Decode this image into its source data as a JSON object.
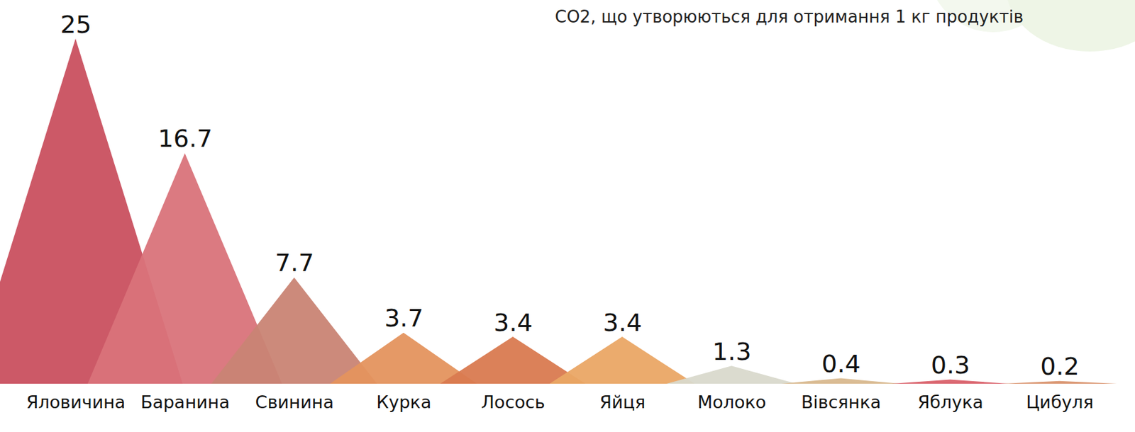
{
  "chart_data": {
    "type": "triangle",
    "title": "СО2, що утворюються для отримання 1 кг продуктів",
    "categories": [
      "Яловичина",
      "Баранина",
      "Свинина",
      "Курка",
      "Лосось",
      "Яйця",
      "Молоко",
      "Вівсянка",
      "Яблука",
      "Цибуля"
    ],
    "values": [
      25,
      16.7,
      7.7,
      3.7,
      3.4,
      3.4,
      1.3,
      0.4,
      0.3,
      0.2
    ],
    "colors": [
      "#c9505f",
      "#d9737a",
      "#c98474",
      "#e4945e",
      "#d97a50",
      "#eaa765",
      "#d9d9cc",
      "#d8b88e",
      "#d9616a",
      "#d9946e"
    ],
    "data_labels": true,
    "tick_labels": "x"
  }
}
